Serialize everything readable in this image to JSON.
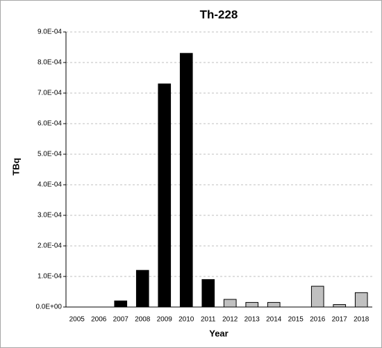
{
  "chart_data": {
    "type": "bar",
    "title": "Th-228",
    "x_label": "Year",
    "y_label": "TBq",
    "categories": [
      "2005",
      "2006",
      "2007",
      "2008",
      "2009",
      "2010",
      "2011",
      "2012",
      "2013",
      "2014",
      "2015",
      "2016",
      "2017",
      "2018"
    ],
    "values": [
      0,
      0,
      2e-05,
      0.00012,
      0.00073,
      0.00083,
      9e-05,
      2.5e-05,
      1.5e-05,
      1.5e-05,
      0,
      6.8e-05,
      8e-06,
      4.7e-05
    ],
    "colors": [
      "#000000",
      "#000000",
      "#000000",
      "#000000",
      "#000000",
      "#000000",
      "#000000",
      "#c0c0c0",
      "#c0c0c0",
      "#c0c0c0",
      "#c0c0c0",
      "#c0c0c0",
      "#c0c0c0",
      "#c0c0c0"
    ],
    "ylim": [
      0,
      0.0009
    ],
    "yticks": [
      {
        "value": 0,
        "label": "0.0E+00"
      },
      {
        "value": 0.0001,
        "label": "1.0E-04"
      },
      {
        "value": 0.0002,
        "label": "2.0E-04"
      },
      {
        "value": 0.0003,
        "label": "3.0E-04"
      },
      {
        "value": 0.0004,
        "label": "4.0E-04"
      },
      {
        "value": 0.0005,
        "label": "5.0E-04"
      },
      {
        "value": 0.0006,
        "label": "6.0E-04"
      },
      {
        "value": 0.0007,
        "label": "7.0E-04"
      },
      {
        "value": 0.0008,
        "label": "8.0E-04"
      },
      {
        "value": 0.0009,
        "label": "9.0E-04"
      }
    ],
    "grid": true
  }
}
